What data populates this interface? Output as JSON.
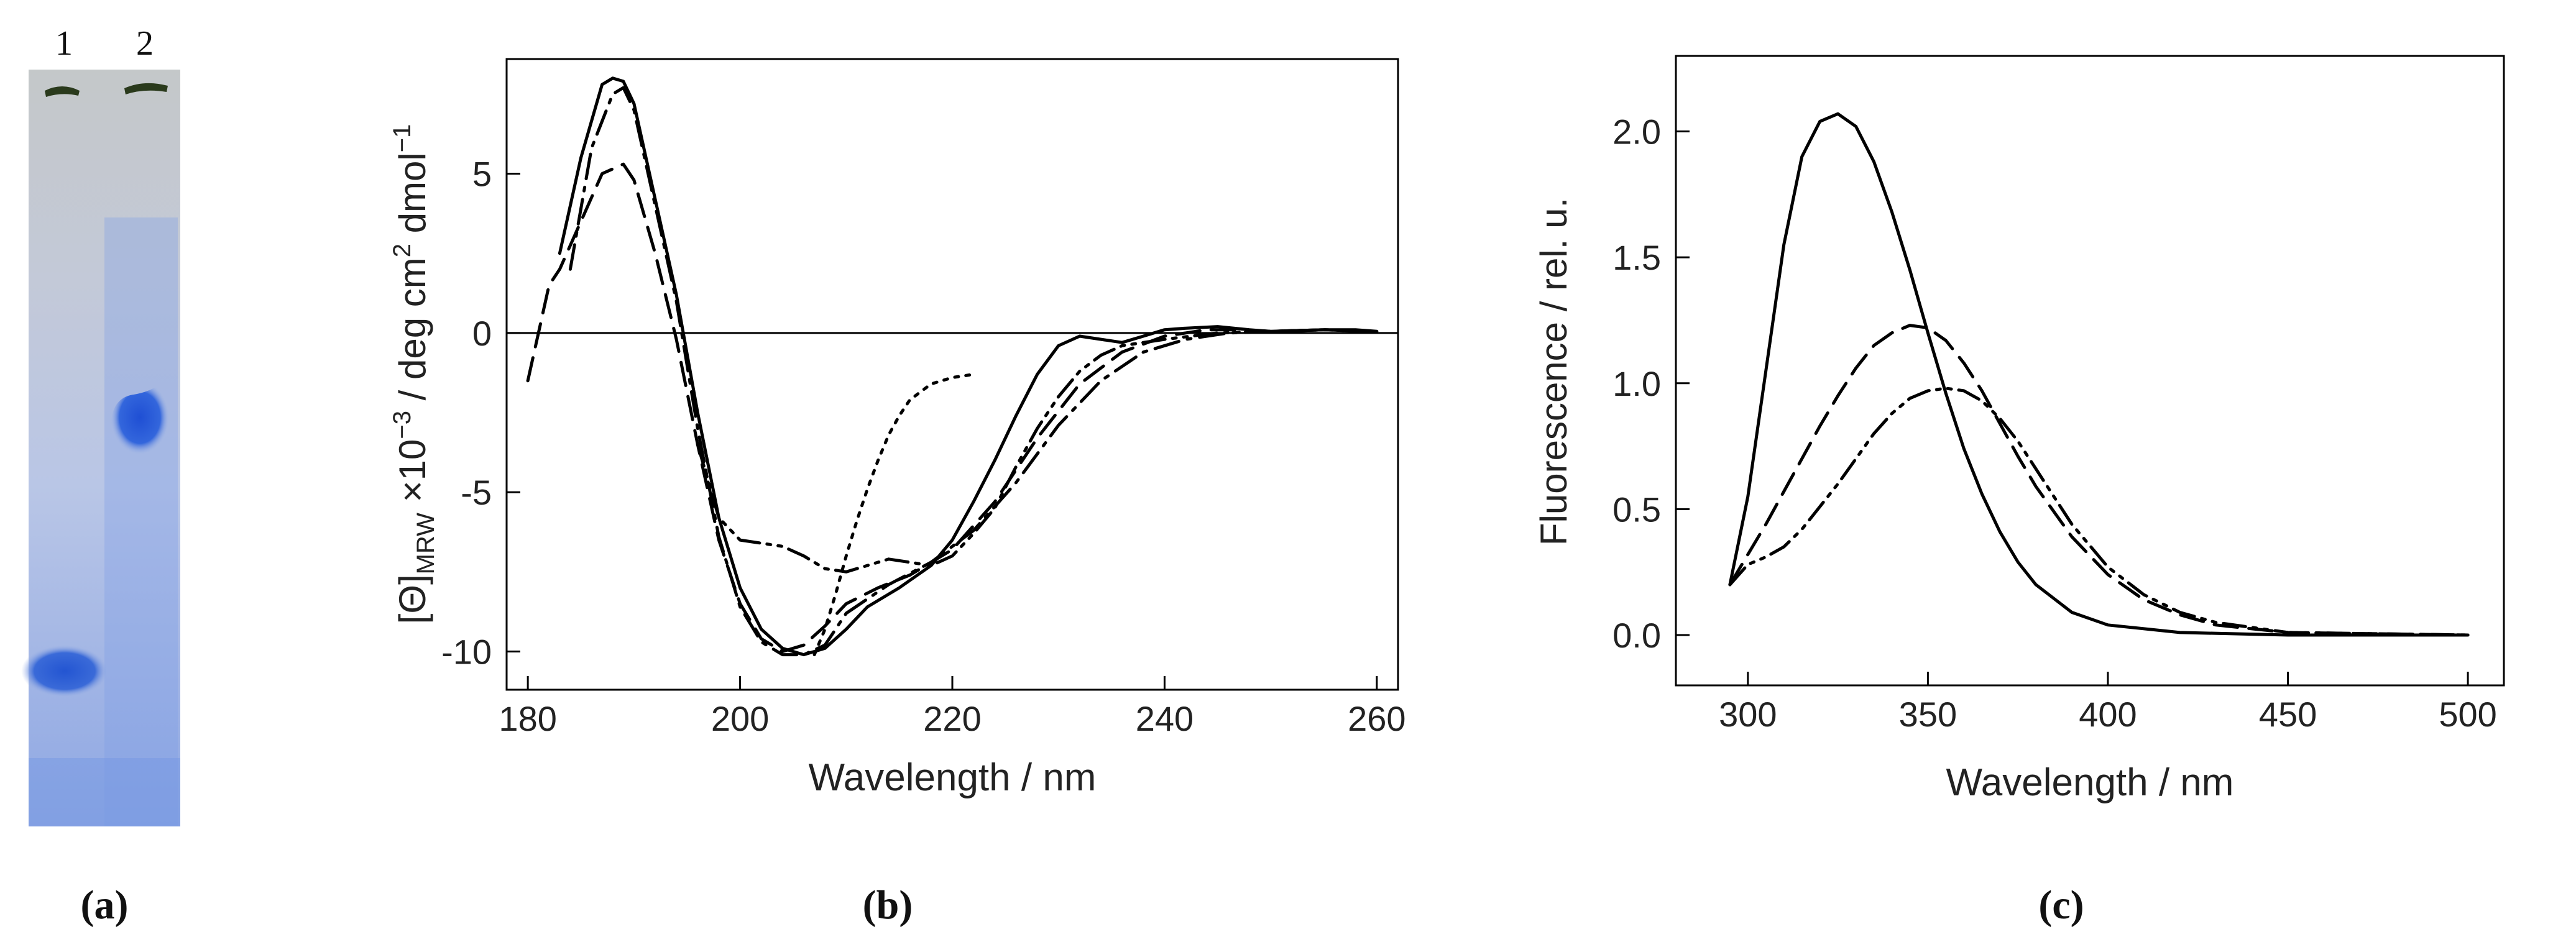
{
  "panels": {
    "a": {
      "label": "(a)",
      "lane_labels": [
        "1",
        "2"
      ],
      "colors": {
        "gel_bg": "#c9d2e7",
        "band": "#2a61d8",
        "well": "#2a3a1c"
      }
    },
    "b": {
      "label": "(b)"
    },
    "c": {
      "label": "(c)"
    }
  },
  "chart_data": [
    {
      "id": "b",
      "type": "line",
      "title": "",
      "xlabel": "Wavelength / nm",
      "ylabel_parts": [
        "[Θ]",
        "MRW",
        " ×10",
        "−3",
        " / deg cm",
        "2",
        " dmol",
        "−1"
      ],
      "xlim": [
        178,
        262
      ],
      "ylim": [
        -11.2,
        8.6
      ],
      "xticks": [
        180,
        200,
        220,
        240,
        260
      ],
      "yticks": [
        5,
        0,
        -5,
        -10
      ],
      "zero_line": true,
      "grid": false,
      "series": [
        {
          "name": "solid",
          "style": "solid",
          "points": [
            [
              183,
              2.5
            ],
            [
              185,
              5.5
            ],
            [
              187,
              7.8
            ],
            [
              188,
              8.0
            ],
            [
              189,
              7.9
            ],
            [
              190,
              7.2
            ],
            [
              192,
              4.2
            ],
            [
              194,
              1.2
            ],
            [
              196,
              -2.5
            ],
            [
              198,
              -5.8
            ],
            [
              200,
              -8.0
            ],
            [
              202,
              -9.3
            ],
            [
              204,
              -9.9
            ],
            [
              206,
              -10.1
            ],
            [
              208,
              -9.9
            ],
            [
              210,
              -9.3
            ],
            [
              212,
              -8.6
            ],
            [
              215,
              -8.0
            ],
            [
              218,
              -7.3
            ],
            [
              220,
              -6.5
            ],
            [
              222,
              -5.3
            ],
            [
              224,
              -4.0
            ],
            [
              226,
              -2.6
            ],
            [
              228,
              -1.3
            ],
            [
              230,
              -0.4
            ],
            [
              232,
              -0.1
            ],
            [
              234,
              -0.2
            ],
            [
              236,
              -0.3
            ],
            [
              238,
              -0.1
            ],
            [
              240,
              0.1
            ],
            [
              242,
              0.15
            ],
            [
              245,
              0.2
            ],
            [
              248,
              0.1
            ],
            [
              250,
              0.05
            ],
            [
              255,
              0.1
            ],
            [
              258,
              0.1
            ],
            [
              260,
              0.05
            ]
          ]
        },
        {
          "name": "dashed",
          "style": "dashed",
          "points": [
            [
              180,
              -1.5
            ],
            [
              181,
              0.0
            ],
            [
              182,
              1.5
            ],
            [
              183,
              2.0
            ],
            [
              185,
              3.5
            ],
            [
              187,
              5.0
            ],
            [
              189,
              5.3
            ],
            [
              190,
              4.8
            ],
            [
              192,
              2.5
            ],
            [
              194,
              -0.2
            ],
            [
              196,
              -3.5
            ],
            [
              198,
              -6.5
            ],
            [
              200,
              -8.5
            ],
            [
              202,
              -9.6
            ],
            [
              204,
              -10.0
            ],
            [
              206,
              -9.8
            ],
            [
              208,
              -9.2
            ],
            [
              210,
              -8.5
            ],
            [
              213,
              -8.0
            ],
            [
              216,
              -7.6
            ],
            [
              220,
              -6.8
            ],
            [
              224,
              -5.3
            ],
            [
              228,
              -3.3
            ],
            [
              232,
              -1.6
            ],
            [
              236,
              -0.6
            ],
            [
              240,
              -0.1
            ],
            [
              244,
              0.1
            ],
            [
              247,
              0.1
            ],
            [
              250,
              0.05
            ],
            [
              255,
              0.1
            ],
            [
              260,
              0.05
            ]
          ]
        },
        {
          "name": "dash-dot",
          "style": "dashdot",
          "points": [
            [
              184,
              2.0
            ],
            [
              186,
              5.8
            ],
            [
              188,
              7.5
            ],
            [
              189,
              7.7
            ],
            [
              190,
              7.0
            ],
            [
              192,
              4.0
            ],
            [
              194,
              1.0
            ],
            [
              196,
              -3.0
            ],
            [
              198,
              -6.4
            ],
            [
              200,
              -8.6
            ],
            [
              202,
              -9.7
            ],
            [
              204,
              -10.1
            ],
            [
              206,
              -10.1
            ],
            [
              208,
              -9.8
            ],
            [
              210,
              -8.8
            ],
            [
              214,
              -7.9
            ],
            [
              218,
              -7.2
            ],
            [
              222,
              -6.2
            ],
            [
              226,
              -4.7
            ],
            [
              230,
              -2.9
            ],
            [
              234,
              -1.5
            ],
            [
              238,
              -0.6
            ],
            [
              242,
              -0.2
            ],
            [
              246,
              0.0
            ],
            [
              250,
              0.05
            ],
            [
              255,
              0.1
            ],
            [
              260,
              0.05
            ]
          ]
        },
        {
          "name": "dash-dot-dot",
          "style": "dashdotdot",
          "points": [
            [
              196,
              -3.5
            ],
            [
              198,
              -5.8
            ],
            [
              200,
              -6.5
            ],
            [
              202,
              -6.6
            ],
            [
              204,
              -6.7
            ],
            [
              206,
              -7.0
            ],
            [
              208,
              -7.4
            ],
            [
              210,
              -7.5
            ],
            [
              212,
              -7.3
            ],
            [
              214,
              -7.1
            ],
            [
              216,
              -7.2
            ],
            [
              218,
              -7.3
            ],
            [
              220,
              -7.0
            ],
            [
              222,
              -6.3
            ],
            [
              224,
              -5.5
            ],
            [
              226,
              -4.2
            ],
            [
              228,
              -3.0
            ],
            [
              230,
              -2.0
            ],
            [
              232,
              -1.2
            ],
            [
              234,
              -0.7
            ],
            [
              236,
              -0.4
            ],
            [
              240,
              -0.2
            ],
            [
              245,
              0.0
            ],
            [
              250,
              0.05
            ],
            [
              255,
              0.1
            ],
            [
              260,
              0.05
            ]
          ]
        },
        {
          "name": "dotted",
          "style": "dotted",
          "points": [
            [
              207,
              -10.1
            ],
            [
              208,
              -9.3
            ],
            [
              209,
              -8.2
            ],
            [
              210,
              -7.0
            ],
            [
              211,
              -5.9
            ],
            [
              212,
              -4.9
            ],
            [
              213,
              -4.0
            ],
            [
              214,
              -3.2
            ],
            [
              215,
              -2.6
            ],
            [
              216,
              -2.1
            ],
            [
              218,
              -1.6
            ],
            [
              220,
              -1.4
            ],
            [
              222,
              -1.3
            ]
          ]
        }
      ]
    },
    {
      "id": "c",
      "type": "line",
      "title": "",
      "xlabel": "Wavelength / nm",
      "ylabel": "Fluorescence / rel. u.",
      "xlim": [
        280,
        510
      ],
      "ylim": [
        -0.2,
        2.3
      ],
      "xticks": [
        300,
        350,
        400,
        450,
        500
      ],
      "yticks": [
        0.0,
        0.5,
        1.0,
        1.5,
        2.0
      ],
      "ytick_labels": [
        "0.0",
        "0.5",
        "1.0",
        "1.5",
        "2.0"
      ],
      "grid": false,
      "series": [
        {
          "name": "solid",
          "style": "solid",
          "points": [
            [
              295,
              0.2
            ],
            [
              300,
              0.55
            ],
            [
              305,
              1.05
            ],
            [
              310,
              1.55
            ],
            [
              315,
              1.9
            ],
            [
              320,
              2.04
            ],
            [
              325,
              2.07
            ],
            [
              330,
              2.02
            ],
            [
              335,
              1.88
            ],
            [
              340,
              1.68
            ],
            [
              345,
              1.45
            ],
            [
              350,
              1.2
            ],
            [
              355,
              0.96
            ],
            [
              360,
              0.74
            ],
            [
              365,
              0.56
            ],
            [
              370,
              0.41
            ],
            [
              375,
              0.29
            ],
            [
              380,
              0.2
            ],
            [
              390,
              0.09
            ],
            [
              400,
              0.04
            ],
            [
              420,
              0.01
            ],
            [
              450,
              0.0
            ],
            [
              500,
              0.0
            ]
          ]
        },
        {
          "name": "dashed",
          "style": "dashed",
          "points": [
            [
              295,
              0.2
            ],
            [
              300,
              0.32
            ],
            [
              305,
              0.44
            ],
            [
              310,
              0.57
            ],
            [
              315,
              0.7
            ],
            [
              320,
              0.83
            ],
            [
              325,
              0.95
            ],
            [
              330,
              1.06
            ],
            [
              335,
              1.15
            ],
            [
              340,
              1.2
            ],
            [
              345,
              1.23
            ],
            [
              350,
              1.22
            ],
            [
              355,
              1.17
            ],
            [
              360,
              1.08
            ],
            [
              365,
              0.97
            ],
            [
              370,
              0.84
            ],
            [
              375,
              0.71
            ],
            [
              380,
              0.59
            ],
            [
              390,
              0.39
            ],
            [
              400,
              0.24
            ],
            [
              410,
              0.14
            ],
            [
              420,
              0.08
            ],
            [
              430,
              0.04
            ],
            [
              450,
              0.01
            ],
            [
              500,
              0.0
            ]
          ]
        },
        {
          "name": "dash-dot-dot",
          "style": "dashdotdot",
          "points": [
            [
              295,
              0.2
            ],
            [
              300,
              0.28
            ],
            [
              305,
              0.31
            ],
            [
              310,
              0.35
            ],
            [
              315,
              0.42
            ],
            [
              320,
              0.51
            ],
            [
              325,
              0.6
            ],
            [
              330,
              0.7
            ],
            [
              335,
              0.8
            ],
            [
              340,
              0.88
            ],
            [
              345,
              0.94
            ],
            [
              350,
              0.97
            ],
            [
              355,
              0.98
            ],
            [
              360,
              0.97
            ],
            [
              365,
              0.93
            ],
            [
              370,
              0.86
            ],
            [
              375,
              0.77
            ],
            [
              380,
              0.66
            ],
            [
              390,
              0.44
            ],
            [
              400,
              0.27
            ],
            [
              410,
              0.16
            ],
            [
              420,
              0.09
            ],
            [
              430,
              0.05
            ],
            [
              450,
              0.01
            ],
            [
              500,
              0.0
            ]
          ]
        }
      ]
    }
  ]
}
